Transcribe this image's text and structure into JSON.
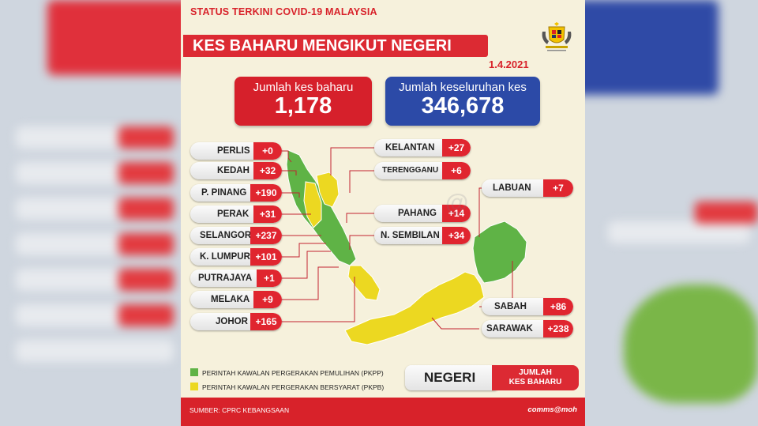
{
  "header": {
    "top_title": "STATUS TERKINI COVID-19 MALAYSIA",
    "main_title": "KES BAHARU MENGIKUT NEGERI",
    "date": "1.4.2021"
  },
  "totals": {
    "new_label": "Jumlah kes baharu",
    "new_value": "1,178",
    "cumulative_label": "Jumlah keseluruhan kes",
    "cumulative_value": "346,678"
  },
  "states": [
    {
      "name": "PERLIS",
      "value": "+0"
    },
    {
      "name": "KEDAH",
      "value": "+32"
    },
    {
      "name": "P. PINANG",
      "value": "+190"
    },
    {
      "name": "PERAK",
      "value": "+31"
    },
    {
      "name": "SELANGOR",
      "value": "+237"
    },
    {
      "name": "K. LUMPUR",
      "value": "+101"
    },
    {
      "name": "PUTRAJAYA",
      "value": "+1"
    },
    {
      "name": "MELAKA",
      "value": "+9"
    },
    {
      "name": "JOHOR",
      "value": "+165"
    },
    {
      "name": "KELANTAN",
      "value": "+27"
    },
    {
      "name": "TERENGGANU",
      "value": "+6"
    },
    {
      "name": "PAHANG",
      "value": "+14"
    },
    {
      "name": "N. SEMBILAN",
      "value": "+34"
    },
    {
      "name": "LABUAN",
      "value": "+7"
    },
    {
      "name": "SABAH",
      "value": "+86"
    },
    {
      "name": "SARAWAK",
      "value": "+238"
    }
  ],
  "legend": {
    "pkpp_label": "PERINTAH KAWALAN PERGERAKAN PEMULIHAN (PKPP)",
    "pkpp_color": "#5fb346",
    "pkpb_label": "PERINTAH KAWALAN PERGERAKAN BERSYARAT (PKPB)",
    "pkpb_color": "#ecd821"
  },
  "key": {
    "left": "NEGERI",
    "right_line1": "JUMLAH",
    "right_line2": "KES BAHARU"
  },
  "footer": {
    "source": "SUMBER: CPRC KEBANGSAAN",
    "brand": "comms@moh"
  },
  "colors": {
    "accent_red": "#dc2a33",
    "accent_blue": "#2c4aa7",
    "card_bg": "#f6f1dc"
  }
}
